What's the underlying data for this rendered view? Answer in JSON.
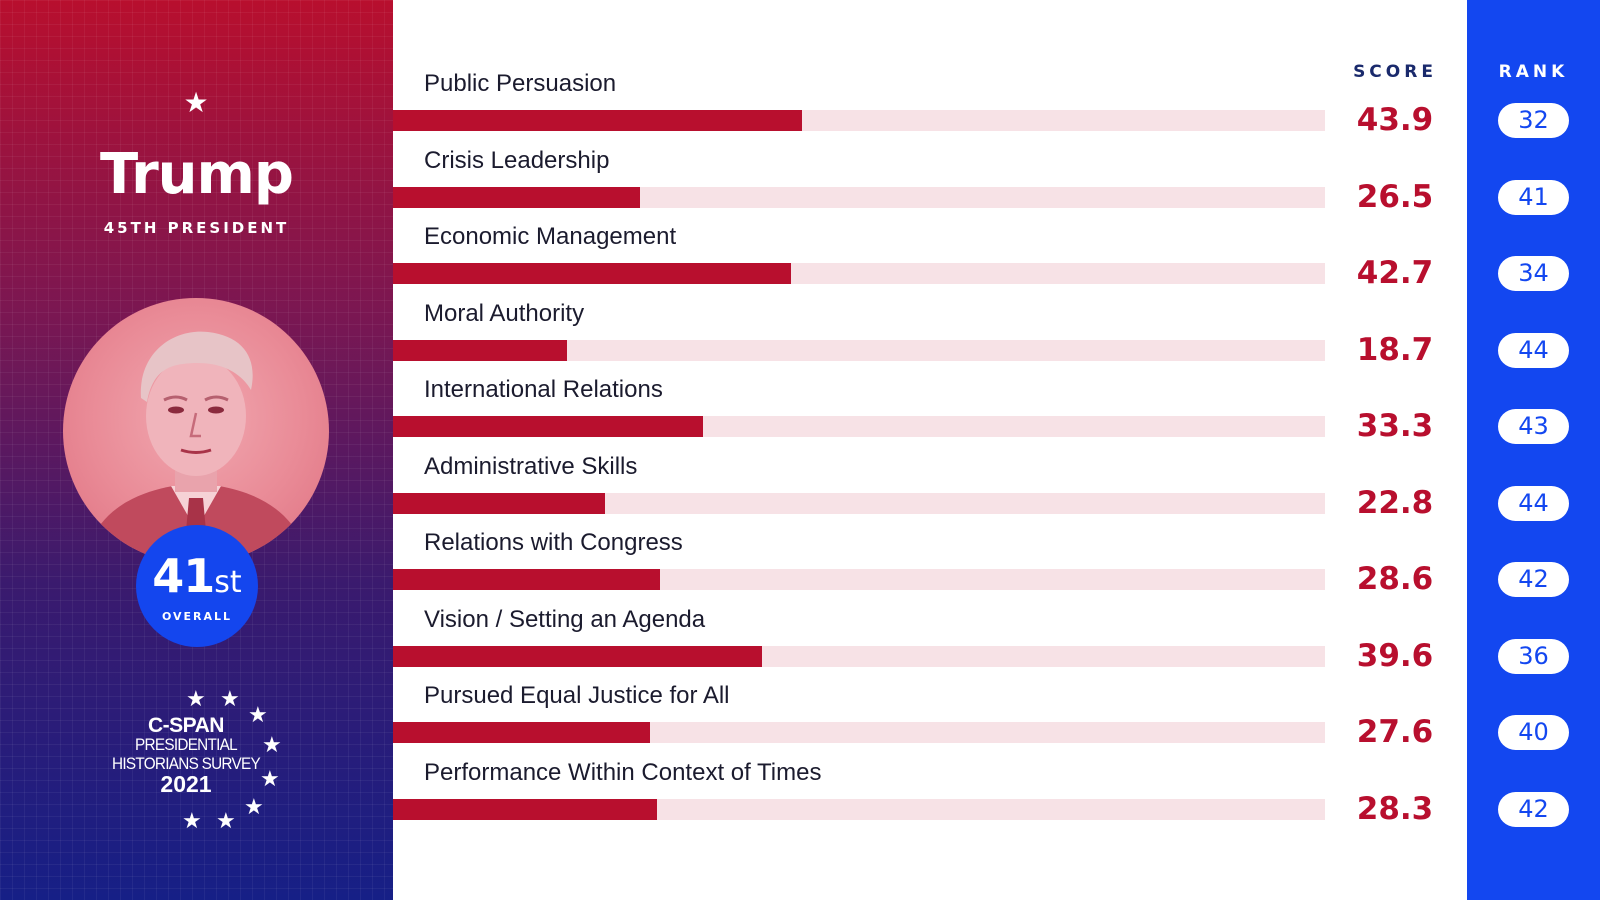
{
  "president": {
    "name": "Trump",
    "number_label": "45TH PRESIDENT",
    "overall_rank": "41",
    "overall_suffix": "st",
    "overall_label": "OVERALL"
  },
  "logo": {
    "brand": "C-SPAN",
    "line1": "PRESIDENTIAL",
    "line2": "HISTORIANS SURVEY",
    "year": "2021"
  },
  "colors": {
    "bar": "#b80f2e",
    "track": "#f7e2e6",
    "rank_panel": "#1347f0",
    "score_text": "#b80f2e"
  },
  "chart_data": {
    "type": "bar",
    "orientation": "horizontal",
    "title": "Trump 45TH PRESIDENT",
    "xlim": [
      0,
      100
    ],
    "score_header": "SCORE",
    "rank_header": "RANK",
    "categories": [
      "Public Persuasion",
      "Crisis Leadership",
      "Economic Management",
      "Moral Authority",
      "International Relations",
      "Administrative Skills",
      "Relations with Congress",
      "Vision / Setting an Agenda",
      "Pursued Equal Justice for All",
      "Performance Within Context of Times"
    ],
    "values": [
      43.9,
      26.5,
      42.7,
      18.7,
      33.3,
      22.8,
      28.6,
      39.6,
      27.6,
      28.3
    ],
    "score_labels": [
      "43.9",
      "26.5",
      "42.7",
      "18.7",
      "33.3",
      "22.8",
      "28.6",
      "39.6",
      "27.6",
      "28.3"
    ],
    "ranks": [
      "32",
      "41",
      "34",
      "44",
      "43",
      "44",
      "42",
      "36",
      "40",
      "42"
    ]
  }
}
